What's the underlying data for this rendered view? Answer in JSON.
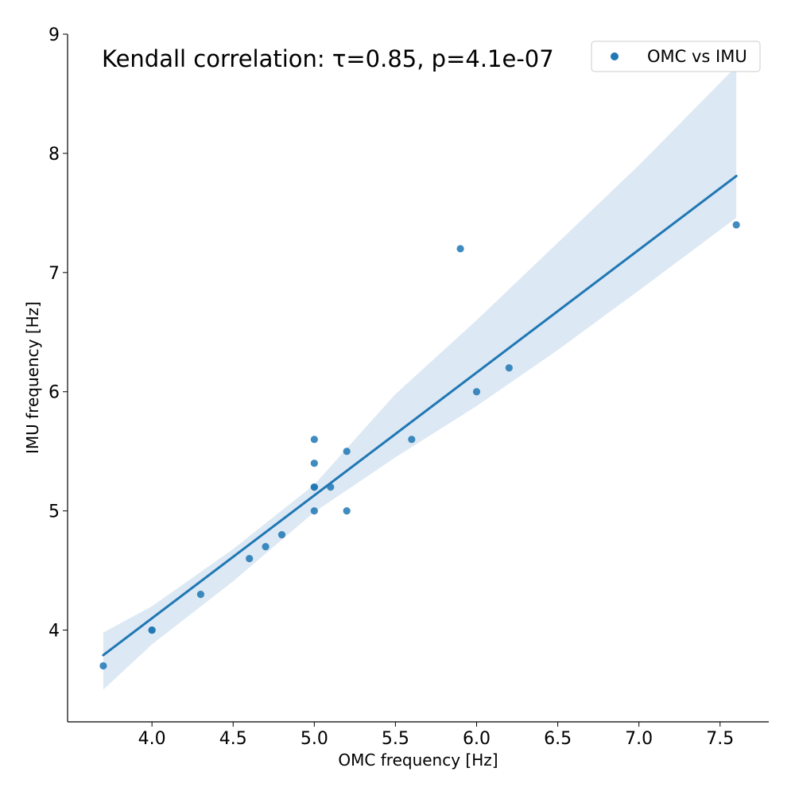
{
  "chart_data": {
    "type": "scatter",
    "annotation": "Kendall correlation: τ=0.85, p=4.1e-07",
    "xlabel": "OMC frequency [Hz]",
    "ylabel": "IMU frequency [Hz]",
    "xlim": [
      3.48,
      7.8
    ],
    "ylim": [
      3.23,
      9.0
    ],
    "x_ticks": [
      "4.0",
      "4.5",
      "5.0",
      "5.5",
      "6.0",
      "6.5",
      "7.0",
      "7.5"
    ],
    "y_ticks": [
      "4",
      "5",
      "6",
      "7",
      "8",
      "9"
    ],
    "grid": false,
    "legend_position": "top-right",
    "series": [
      {
        "name": "OMC vs IMU",
        "color": "#1f77b4",
        "points": [
          [
            3.7,
            3.7
          ],
          [
            4.0,
            4.0
          ],
          [
            4.0,
            4.0
          ],
          [
            4.3,
            4.3
          ],
          [
            4.6,
            4.6
          ],
          [
            4.7,
            4.7
          ],
          [
            4.8,
            4.8
          ],
          [
            5.0,
            5.0
          ],
          [
            5.0,
            5.2
          ],
          [
            5.0,
            5.2
          ],
          [
            5.0,
            5.4
          ],
          [
            5.0,
            5.6
          ],
          [
            5.1,
            5.2
          ],
          [
            5.2,
            5.0
          ],
          [
            5.2,
            5.5
          ],
          [
            5.6,
            5.6
          ],
          [
            5.9,
            7.2
          ],
          [
            6.0,
            6.0
          ],
          [
            6.2,
            6.2
          ],
          [
            7.6,
            7.4
          ]
        ]
      }
    ],
    "regression": {
      "x": [
        3.7,
        7.6
      ],
      "y": [
        3.79,
        7.81
      ],
      "ci_band": {
        "x": [
          3.7,
          4.0,
          4.5,
          5.0,
          5.5,
          6.0,
          6.5,
          7.0,
          7.6
        ],
        "lower": [
          3.5,
          3.88,
          4.41,
          4.99,
          5.45,
          5.88,
          6.35,
          6.85,
          7.46
        ],
        "upper": [
          3.98,
          4.2,
          4.68,
          5.22,
          5.98,
          6.6,
          7.25,
          7.9,
          8.73
        ]
      },
      "band_color": "#dce8f3",
      "line_color": "#1f77b4"
    }
  }
}
